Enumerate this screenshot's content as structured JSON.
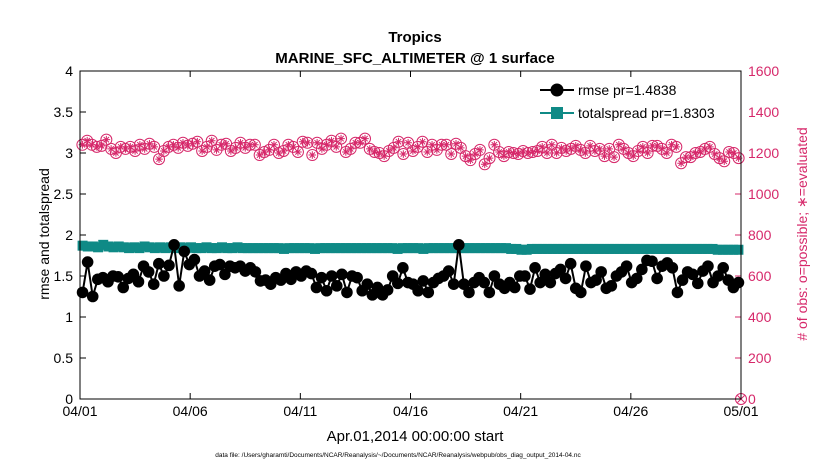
{
  "chart_data": {
    "type": "line",
    "title": "Tropics",
    "subtitle": "MARINE_SFC_ALTIMETER @ 1 surface",
    "xlabel": "Apr.01,2014 00:00:00 start",
    "ylabel_left": "rmse and totalspread",
    "ylabel_right": "# of obs: o=possible; ∗=evaluated",
    "footnote": "data file: /Users/gharamti/Documents/NCAR/Reanalysis/~/Documents/NCAR/Reanalysis/webpub/obs_diag_output_2014-04.nc",
    "x_ticks": [
      "04/01",
      "04/06",
      "04/11",
      "04/16",
      "04/21",
      "04/26",
      "05/01"
    ],
    "x_range_days": [
      0,
      30
    ],
    "ylim_left": [
      0,
      4
    ],
    "y_ticks_left": [
      "0",
      "0.5",
      "1",
      "1.5",
      "2",
      "2.5",
      "3",
      "3.5",
      "4"
    ],
    "ylim_right": [
      0,
      1600
    ],
    "y_ticks_right": [
      "0",
      "200",
      "400",
      "600",
      "800",
      "1000",
      "1200",
      "1400",
      "1600"
    ],
    "legend_position": "top-right",
    "colors": {
      "rmse": "#000000",
      "totalspread": "#0f8a86",
      "obs": "#d6286a"
    },
    "series": [
      {
        "name": "rmse pr=1.4838",
        "axis": "left",
        "marker": "circle",
        "values": [
          1.3,
          1.67,
          1.25,
          1.46,
          1.48,
          1.43,
          1.5,
          1.49,
          1.36,
          1.47,
          1.52,
          1.43,
          1.62,
          1.55,
          1.4,
          1.65,
          1.5,
          1.63,
          1.88,
          1.38,
          1.8,
          1.64,
          1.7,
          1.5,
          1.56,
          1.45,
          1.62,
          1.64,
          1.52,
          1.62,
          1.6,
          1.62,
          1.56,
          1.6,
          1.55,
          1.44,
          1.45,
          1.4,
          1.48,
          1.45,
          1.53,
          1.46,
          1.55,
          1.5,
          1.56,
          1.53,
          1.36,
          1.48,
          1.32,
          1.5,
          1.38,
          1.52,
          1.3,
          1.5,
          1.48,
          1.32,
          1.4,
          1.27,
          1.36,
          1.27,
          1.33,
          1.5,
          1.41,
          1.6,
          1.42,
          1.4,
          1.32,
          1.44,
          1.3,
          1.42,
          1.47,
          1.5,
          1.56,
          1.4,
          1.88,
          1.4,
          1.3,
          1.42,
          1.48,
          1.42,
          1.3,
          1.5,
          1.4,
          1.35,
          1.42,
          1.36,
          1.5,
          1.5,
          1.34,
          1.6,
          1.42,
          1.52,
          1.42,
          1.53,
          1.58,
          1.47,
          1.65,
          1.35,
          1.3,
          1.62,
          1.42,
          1.45,
          1.55,
          1.35,
          1.38,
          1.5,
          1.55,
          1.62,
          1.42,
          1.47,
          1.58,
          1.69,
          1.68,
          1.47,
          1.62,
          1.66,
          1.6,
          1.3,
          1.45,
          1.55,
          1.52,
          1.41,
          1.56,
          1.62,
          1.42,
          1.5,
          1.6,
          1.45,
          1.36,
          1.42
        ]
      },
      {
        "name": "totalspread pr=1.8303",
        "axis": "left",
        "marker": "square",
        "values": [
          1.87,
          1.86,
          1.86,
          1.85,
          1.88,
          1.86,
          1.85,
          1.86,
          1.85,
          1.84,
          1.85,
          1.84,
          1.86,
          1.85,
          1.84,
          1.85,
          1.84,
          1.85,
          1.84,
          1.85,
          1.84,
          1.85,
          1.84,
          1.84,
          1.85,
          1.84,
          1.84,
          1.85,
          1.84,
          1.84,
          1.85,
          1.84,
          1.84,
          1.84,
          1.84,
          1.84,
          1.84,
          1.84,
          1.84,
          1.83,
          1.84,
          1.84,
          1.84,
          1.84,
          1.84,
          1.83,
          1.84,
          1.84,
          1.84,
          1.84,
          1.84,
          1.84,
          1.84,
          1.84,
          1.84,
          1.84,
          1.84,
          1.84,
          1.84,
          1.84,
          1.84,
          1.83,
          1.84,
          1.84,
          1.84,
          1.84,
          1.83,
          1.84,
          1.84,
          1.84,
          1.84,
          1.84,
          1.84,
          1.84,
          1.84,
          1.84,
          1.84,
          1.84,
          1.84,
          1.84,
          1.84,
          1.84,
          1.84,
          1.83,
          1.83,
          1.82,
          1.82,
          1.83,
          1.83,
          1.83,
          1.83,
          1.83,
          1.83,
          1.83,
          1.83,
          1.83,
          1.83,
          1.83,
          1.83,
          1.83,
          1.83,
          1.83,
          1.83,
          1.83,
          1.83,
          1.83,
          1.83,
          1.83,
          1.83,
          1.83,
          1.83,
          1.83,
          1.83,
          1.83,
          1.83,
          1.83,
          1.83,
          1.83,
          1.83,
          1.83,
          1.83,
          1.83,
          1.83,
          1.82,
          1.82,
          1.82,
          1.82,
          1.82
        ]
      },
      {
        "name": "# of obs possible/evaluated",
        "axis": "right",
        "marker": "circle-asterisk",
        "values": [
          1240,
          1260,
          1240,
          1230,
          1235,
          1265,
          1220,
          1200,
          1230,
          1220,
          1230,
          1210,
          1240,
          1220,
          1245,
          1230,
          1170,
          1210,
          1230,
          1240,
          1225,
          1250,
          1235,
          1245,
          1255,
          1210,
          1230,
          1260,
          1215,
          1240,
          1245,
          1210,
          1225,
          1250,
          1225,
          1240,
          1240,
          1190,
          1205,
          1215,
          1240,
          1200,
          1210,
          1240,
          1230,
          1205,
          1255,
          1250,
          1190,
          1250,
          1220,
          1240,
          1260,
          1230,
          1270,
          1205,
          1220,
          1250,
          1250,
          1270,
          1220,
          1205,
          1200,
          1185,
          1210,
          1225,
          1255,
          1195,
          1250,
          1210,
          1230,
          1255,
          1205,
          1240,
          1215,
          1240,
          1240,
          1195,
          1245,
          1225,
          1185,
          1165,
          1195,
          1215,
          1145,
          1175,
          1240,
          1205,
          1185,
          1205,
          1200,
          1195,
          1210,
          1200,
          1205,
          1210,
          1230,
          1200,
          1240,
          1200,
          1225,
          1210,
          1220,
          1235,
          1215,
          1200,
          1235,
          1210,
          1220,
          1185,
          1220,
          1180,
          1240,
          1220,
          1200,
          1185,
          1210,
          1230,
          1200,
          1235,
          1235,
          1220,
          1200,
          1240,
          1230,
          1150,
          1180,
          1180,
          1200,
          1205,
          1220,
          1230,
          1195,
          1175,
          1160,
          1205,
          1200,
          1175
        ]
      }
    ],
    "final_obs_point": {
      "day": 30,
      "value": 0
    }
  }
}
